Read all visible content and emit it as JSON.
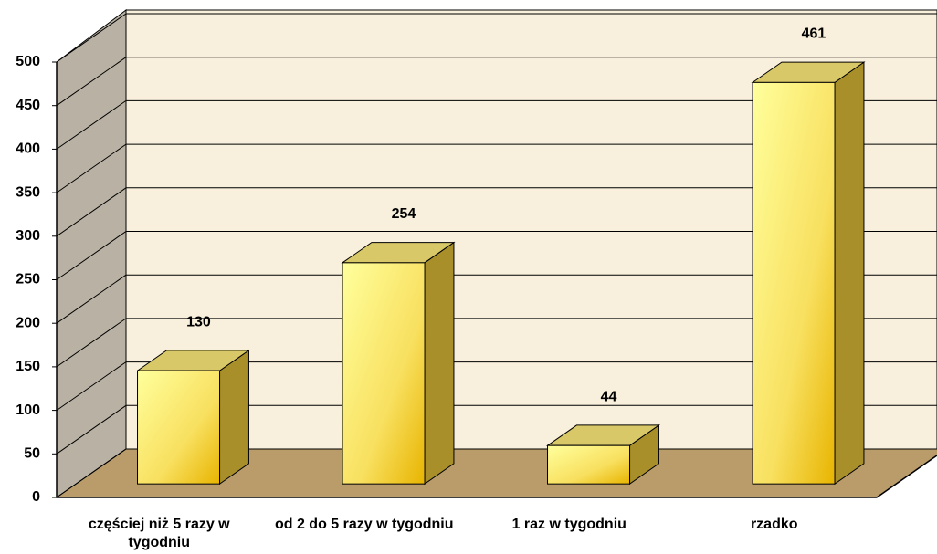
{
  "chart_data": {
    "type": "bar3d",
    "categories": [
      "częściej niż 5 razy w tygodniu",
      "od 2 do 5 razy w tygodniu",
      "1 raz w tygodniu",
      "rzadko"
    ],
    "values": [
      130,
      254,
      44,
      461
    ],
    "ylim": [
      0,
      500
    ],
    "yticks": [
      0,
      50,
      100,
      150,
      200,
      250,
      300,
      350,
      400,
      450,
      500
    ],
    "grid": true,
    "color": "#f5d020"
  }
}
